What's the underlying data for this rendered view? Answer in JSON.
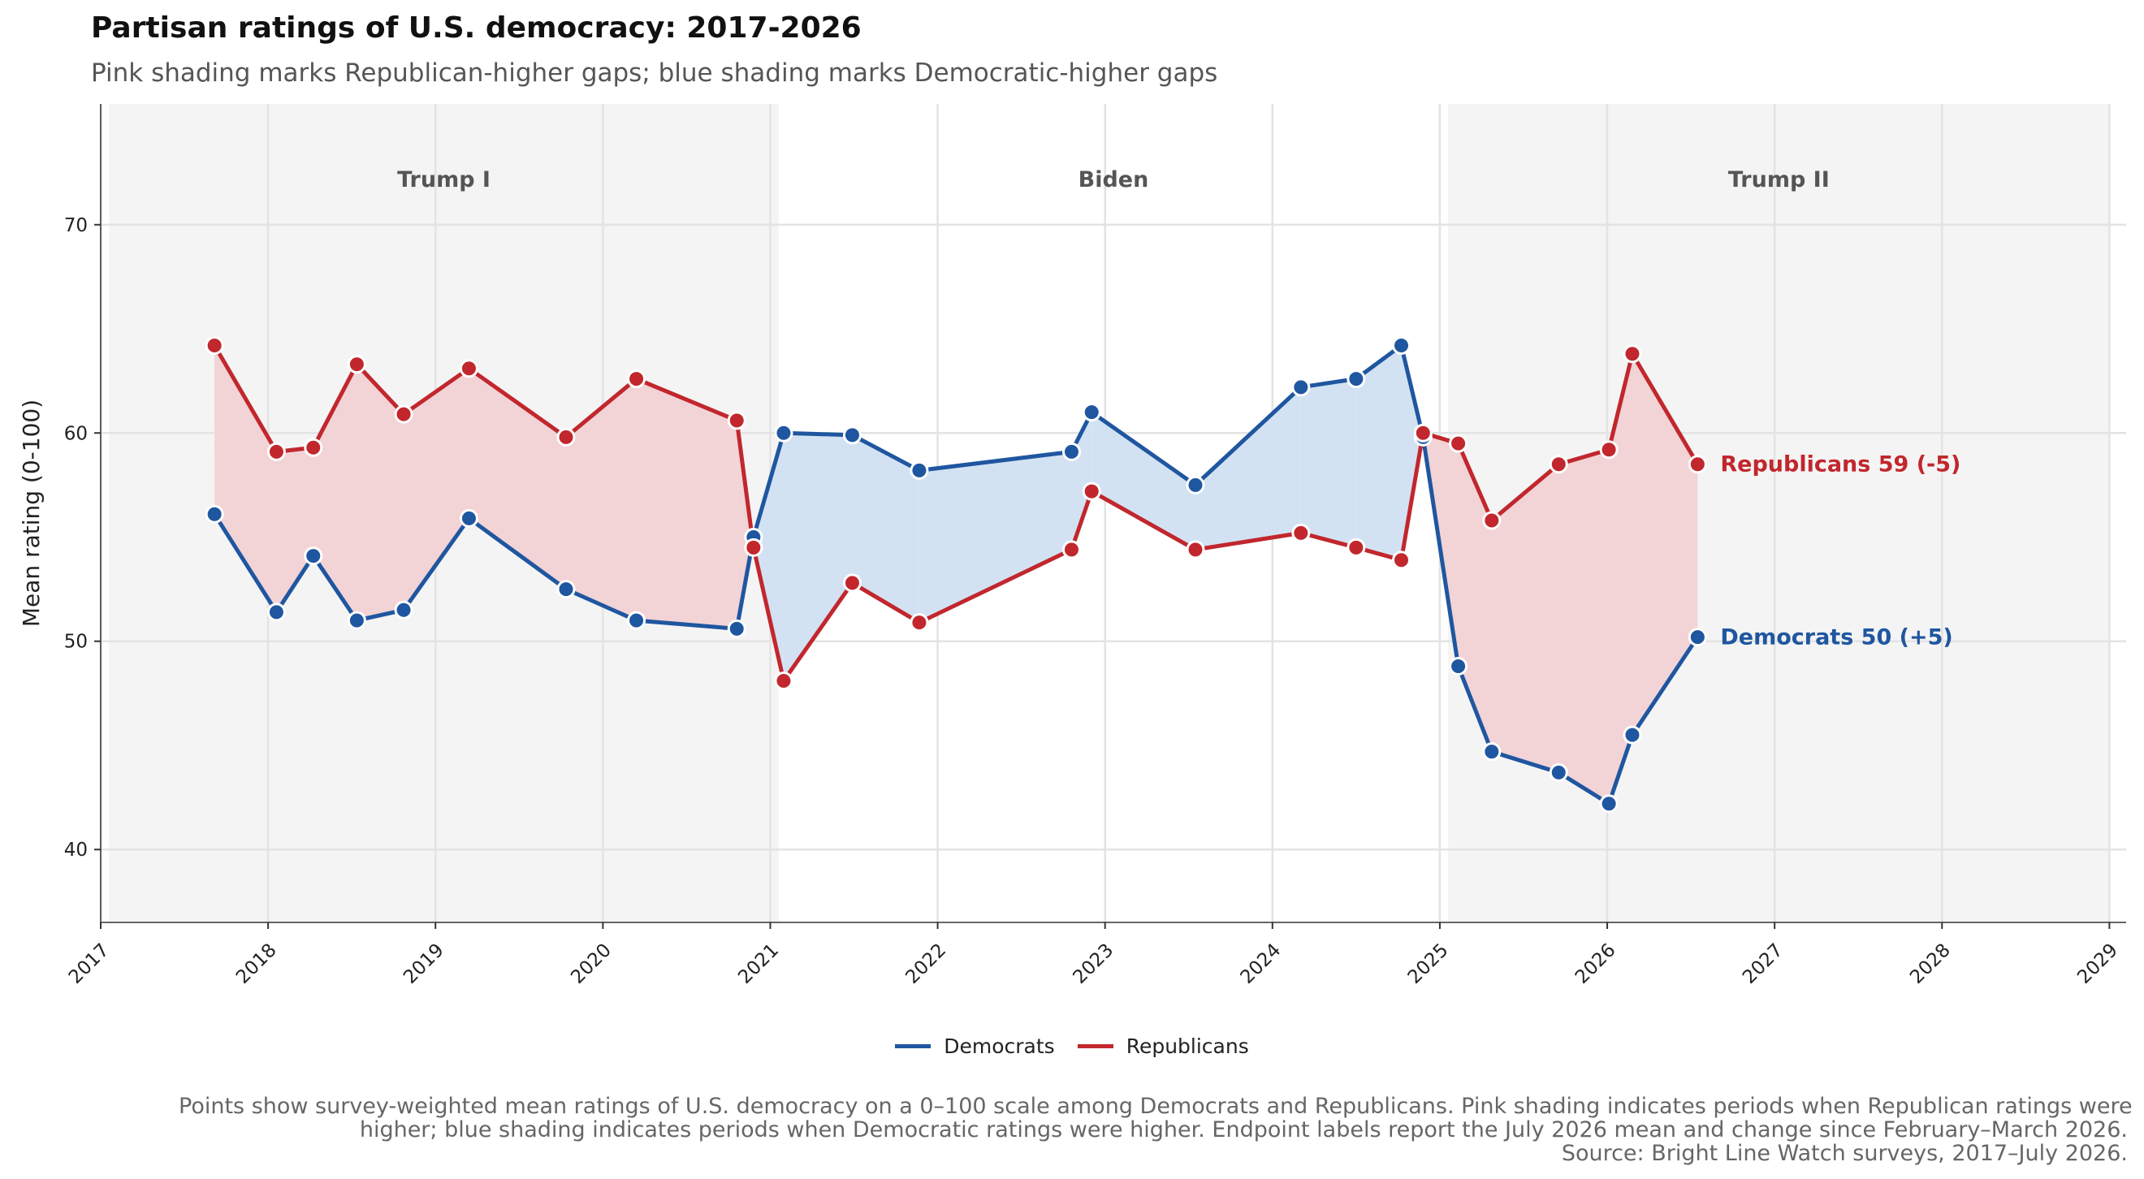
{
  "title": "Partisan ratings of U.S. democracy: 2017-2026",
  "subtitle": "Pink shading marks Republican-higher gaps; blue shading marks Democratic-higher gaps",
  "caption": [
    "Points show survey-weighted mean ratings of U.S. democracy on a 0–100 scale among Democrats and Republicans. Pink shading indicates periods when Republican ratings were",
    "higher; blue shading indicates periods when Democratic ratings were higher. Endpoint labels report the July 2026 mean and change since February–March 2026.",
    "Source: Bright Line Watch surveys, 2017–July 2026."
  ],
  "colors": {
    "democrats": "#1f56a0",
    "republicans": "#c1272d",
    "dem_fill": "#d3e2f3",
    "rep_fill": "#f2d3d6",
    "era_band": "#f4f4f4",
    "grid": "#e3e3e3"
  },
  "chart_data": {
    "type": "line",
    "xlabel": "",
    "ylabel": "Mean rating (0-100)",
    "xlim": [
      2017.0,
      2029.1
    ],
    "ylim": [
      36.5,
      75.8
    ],
    "x_ticks": [
      2017,
      2018,
      2019,
      2020,
      2021,
      2022,
      2023,
      2024,
      2025,
      2026,
      2027,
      2028,
      2029
    ],
    "y_ticks": [
      40,
      50,
      60,
      70
    ],
    "grid": true,
    "legend_position": "bottom",
    "eras": [
      {
        "label": "Trump I",
        "start": 2017.05,
        "end": 2021.05
      },
      {
        "label": "Biden",
        "start": 2021.05,
        "end": 2025.05
      },
      {
        "label": "Trump II",
        "start": 2025.05,
        "end": 2029.0
      }
    ],
    "x": [
      2017.68,
      2018.05,
      2018.27,
      2018.53,
      2018.81,
      2019.2,
      2019.78,
      2020.2,
      2020.8,
      2020.9,
      2021.08,
      2021.49,
      2021.89,
      2022.8,
      2022.92,
      2023.54,
      2024.17,
      2024.5,
      2024.77,
      2024.9,
      2025.11,
      2025.31,
      2025.71,
      2026.01,
      2026.15,
      2026.54
    ],
    "series": [
      {
        "name": "Democrats",
        "values": [
          56.1,
          51.4,
          54.1,
          51.0,
          51.5,
          55.9,
          52.5,
          51.0,
          50.6,
          55.0,
          60.0,
          59.9,
          58.2,
          59.1,
          61.0,
          57.5,
          62.2,
          62.6,
          64.2,
          59.8,
          48.8,
          44.7,
          43.7,
          42.2,
          45.5,
          50.2
        ]
      },
      {
        "name": "Republicans",
        "values": [
          64.2,
          59.1,
          59.3,
          63.3,
          60.9,
          63.1,
          59.8,
          62.6,
          60.6,
          54.5,
          48.1,
          52.8,
          50.9,
          54.4,
          57.2,
          54.4,
          55.2,
          54.5,
          53.9,
          60.0,
          59.5,
          55.8,
          58.5,
          59.2,
          63.8,
          58.5
        ]
      }
    ],
    "end_labels": [
      {
        "series": "Republicans",
        "text": "Republicans 59 (-5)"
      },
      {
        "series": "Democrats",
        "text": "Democrats 50 (+5)"
      }
    ]
  }
}
